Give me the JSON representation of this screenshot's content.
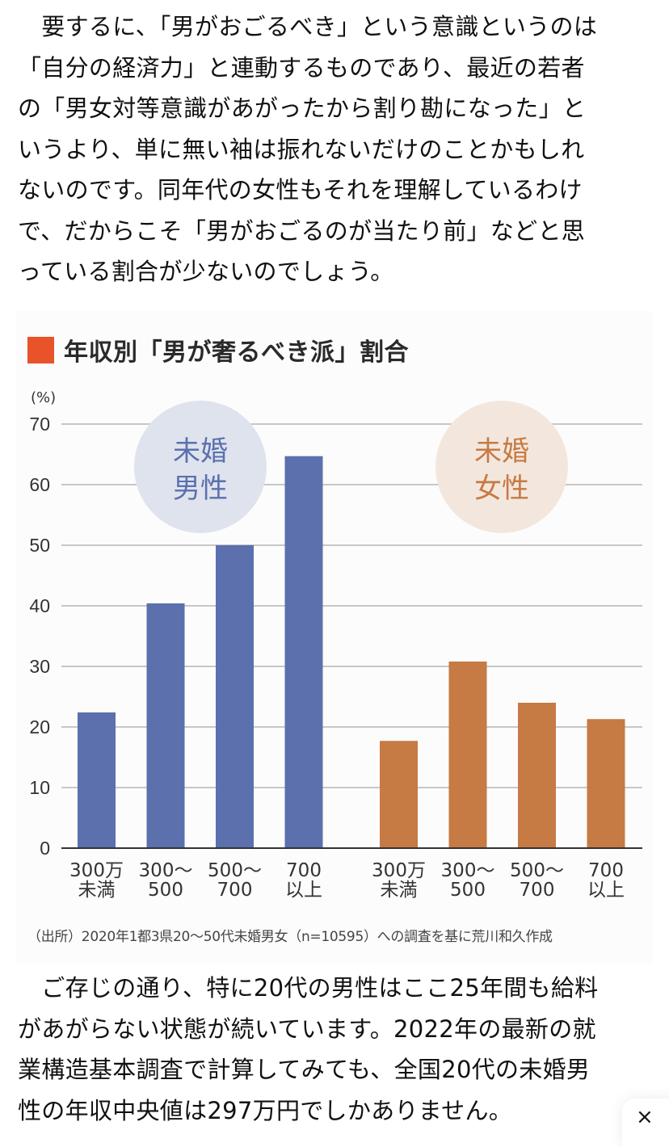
{
  "article": {
    "paragraph1": [
      "　要するに、「男がおごるべき」という意識というのは",
      "「自分の経済力」と連動するものであり、最近の若者",
      "の「男女対等意識があがったから割り勘になった」と",
      "いうより、単に無い袖は振れないだけのことかもしれ",
      "ないのです。同年代の女性もそれを理解しているわけ",
      "で、だからこそ「男がおごるのが当たり前」などと思",
      "っている割合が少ないのでしょう。"
    ],
    "paragraph2": [
      "　ご存じの通り、特に20代の男性はここ25年間も給料",
      "があがらない状態が続いています。2022年の最新の就",
      "業構造基本調査で計算してみても、全国20代の未婚男",
      "性の年収中央値は297万円でしかありません。"
    ]
  },
  "close_button": {
    "label": "×",
    "icon": "close-icon"
  },
  "chart_data": {
    "type": "bar",
    "title": "年収別「男が奢るべき派」割合",
    "title_marker_color": "#e8532a",
    "ylabel": "(%)",
    "xlabel": "",
    "ylim": [
      0,
      70
    ],
    "yticks": [
      0,
      10,
      20,
      30,
      40,
      50,
      60,
      70
    ],
    "grid": true,
    "source": "（出所）2020年1都3県20〜50代未婚男女（n=10595）への調査を基に荒川和久作成",
    "groups": [
      {
        "name": "未婚男性",
        "badge_lines": [
          "未婚",
          "男性"
        ],
        "color": "#5b70ad",
        "badge_bg": "#dfe3ee",
        "categories": [
          [
            "300万",
            "未満"
          ],
          [
            "300〜",
            "500"
          ],
          [
            "500〜",
            "700"
          ],
          [
            "700",
            "以上"
          ]
        ],
        "values": [
          22.4,
          40.4,
          50.0,
          64.7
        ]
      },
      {
        "name": "未婚女性",
        "badge_lines": [
          "未婚",
          "女性"
        ],
        "color": "#c67a44",
        "badge_bg": "#f3e7dd",
        "categories": [
          [
            "300万",
            "未満"
          ],
          [
            "300〜",
            "500"
          ],
          [
            "500〜",
            "700"
          ],
          [
            "700",
            "以上"
          ]
        ],
        "values": [
          17.7,
          30.8,
          24.0,
          21.3
        ]
      }
    ]
  }
}
